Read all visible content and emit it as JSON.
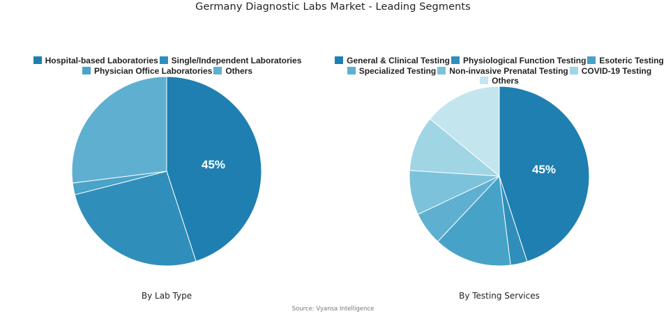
{
  "title": "Germany Diagnostic Labs Market - Leading Segments",
  "source": "Source: Vyansa Intelligence",
  "charts": {
    "left": {
      "caption": "By Lab Type",
      "main_label": "45%"
    },
    "right": {
      "caption": "By Testing Services",
      "main_label": "45%"
    }
  },
  "chart_data": [
    {
      "type": "pie",
      "title": "By Lab Type",
      "categories": [
        "Hospital-based Laboratories",
        "Single/Independent Laboratories",
        "Physician Office Laboratories",
        "Others"
      ],
      "values": [
        45,
        26,
        2,
        27
      ],
      "colors": [
        "#1f7fb0",
        "#2f8fba",
        "#4aa3c9",
        "#5fb0d0"
      ],
      "data_labels": [
        "45%",
        "",
        "",
        ""
      ],
      "start_angle": "12 o'clock, clockwise",
      "legend_position": "top"
    },
    {
      "type": "pie",
      "title": "By Testing Services",
      "categories": [
        "General & Clinical Testing",
        "Physiological Function Testing",
        "Esoteric Testing",
        "Specialized Testing",
        "Non-invasive Prenatal Testing",
        "COVID-19 Testing",
        "Others"
      ],
      "values": [
        45,
        3,
        14,
        6,
        8,
        10,
        14
      ],
      "colors": [
        "#1f7fb0",
        "#2f8fba",
        "#47a2c8",
        "#5fb0d0",
        "#7cc2da",
        "#a0d5e4",
        "#c3e6ee"
      ],
      "data_labels": [
        "45%",
        "",
        "",
        "",
        "",
        "",
        ""
      ],
      "start_angle": "12 o'clock, clockwise",
      "legend_position": "top"
    }
  ]
}
